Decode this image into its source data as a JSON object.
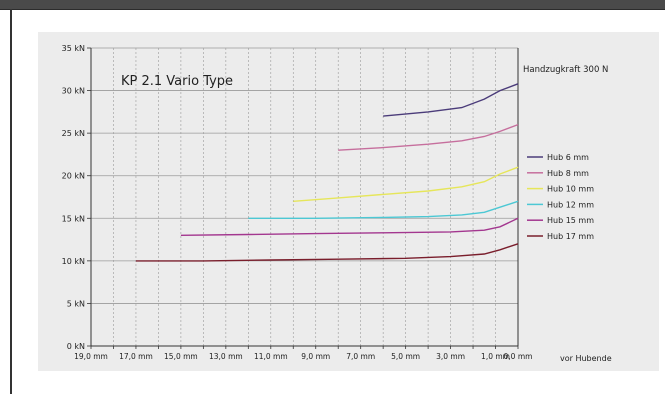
{
  "chart_data": {
    "type": "line",
    "title": "KP 2.1 Vario Type",
    "subtitle": "Handzugkraft 300 N",
    "xlabel": "vor Hubende",
    "ylabel": "",
    "x_unit": "mm",
    "y_unit": "kN",
    "xlim": [
      19,
      0
    ],
    "ylim": [
      0,
      35
    ],
    "x_ticks": [
      "19,0 mm",
      "17,0 mm",
      "15,0 mm",
      "13,0 mm",
      "11,0 mm",
      "9,0 mm",
      "7,0 mm",
      "5,0 mm",
      "3,0 mm",
      "1,0 mm",
      "0,0 mm"
    ],
    "x_tick_values": [
      19,
      17,
      15,
      13,
      11,
      9,
      7,
      5,
      3,
      1,
      0
    ],
    "y_ticks": [
      "0 kN",
      "5 kN",
      "10 kN",
      "15 kN",
      "20 kN",
      "25 kN",
      "30 kN",
      "35 kN"
    ],
    "y_tick_values": [
      0,
      5,
      10,
      15,
      20,
      25,
      30,
      35
    ],
    "grid": true,
    "legend_position": "right",
    "series": [
      {
        "name": "Hub 6 mm",
        "color": "#4b3c7a",
        "x": [
          6.0,
          4.0,
          2.5,
          1.5,
          0.8,
          0.0
        ],
        "y": [
          27.0,
          27.5,
          28.0,
          29.0,
          30.0,
          30.8
        ]
      },
      {
        "name": "Hub 8 mm",
        "color": "#c66f9d",
        "x": [
          8.0,
          6.0,
          4.0,
          2.5,
          1.5,
          0.8,
          0.0
        ],
        "y": [
          23.0,
          23.3,
          23.7,
          24.1,
          24.6,
          25.2,
          26.0
        ]
      },
      {
        "name": "Hub 10 mm",
        "color": "#e6e65a",
        "x": [
          10.0,
          8.0,
          6.0,
          4.0,
          2.5,
          1.5,
          0.8,
          0.0
        ],
        "y": [
          17.0,
          17.4,
          17.8,
          18.2,
          18.7,
          19.3,
          20.2,
          21.0
        ]
      },
      {
        "name": "Hub 12 mm",
        "color": "#4cc8d4",
        "x": [
          12.0,
          9.0,
          6.0,
          4.0,
          2.5,
          1.5,
          0.8,
          0.0
        ],
        "y": [
          15.0,
          15.0,
          15.1,
          15.2,
          15.4,
          15.7,
          16.3,
          17.0
        ]
      },
      {
        "name": "Hub 15 mm",
        "color": "#a3378f",
        "x": [
          15.0,
          12.0,
          9.0,
          6.0,
          3.0,
          1.5,
          0.8,
          0.0
        ],
        "y": [
          13.0,
          13.1,
          13.2,
          13.3,
          13.4,
          13.6,
          14.0,
          15.0
        ]
      },
      {
        "name": "Hub 17 mm",
        "color": "#7a1e2c",
        "x": [
          17.0,
          14.0,
          11.0,
          8.0,
          5.0,
          3.0,
          1.5,
          0.8,
          0.0
        ],
        "y": [
          10.0,
          10.0,
          10.1,
          10.2,
          10.3,
          10.5,
          10.8,
          11.3,
          12.0
        ]
      }
    ]
  }
}
